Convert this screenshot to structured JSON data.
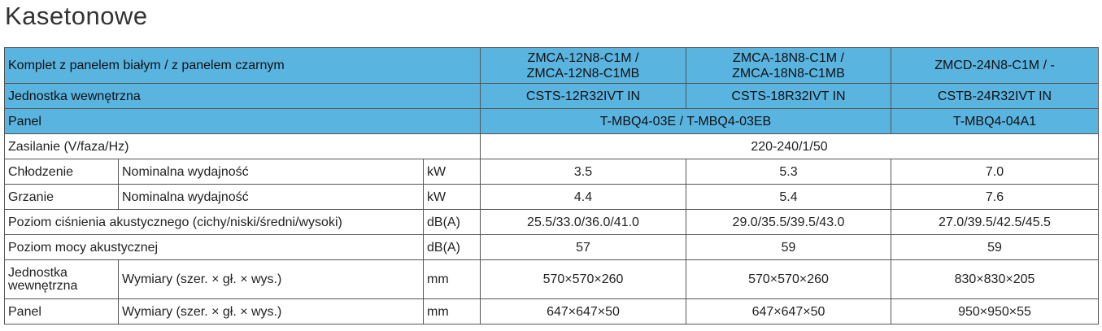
{
  "title": "Kasetonowe",
  "table": {
    "header": [
      [
        "Komplet z panelem białym / z panelem czarnym",
        "ZMCA-12N8-C1M /\nZMCA-12N8-C1MB",
        "ZMCA-18N8-C1M /\nZMCA-18N8-C1MB",
        "ZMCD-24N8-C1M / -"
      ],
      [
        "Jednostka wewnętrzna",
        "CSTS-12R32IVT IN",
        "CSTS-18R32IVT IN",
        "CSTB-24R32IVT IN"
      ],
      [
        "Panel",
        "T-MBQ4-03E / T-MBQ4-03EB",
        "T-MBQ4-04A1"
      ]
    ],
    "rows": [
      [
        "Zasilanie (V/faza/Hz)",
        "220-240/1/50"
      ],
      [
        "Chłodzenie",
        "Nominalna wydajność",
        "kW",
        "3.5",
        "5.3",
        "7.0"
      ],
      [
        "Grzanie",
        "Nominalna wydajność",
        "kW",
        "4.4",
        "5.4",
        "7.6"
      ],
      [
        "Poziom ciśnienia akustycznego (cichy/niski/średni/wysoki)",
        "dB(A)",
        "25.5/33.0/36.0/41.0",
        "29.0/35.5/39.5/43.0",
        "27.0/39.5/42.5/45.5"
      ],
      [
        "Poziom mocy akustycznej",
        "dB(A)",
        "57",
        "59",
        "59"
      ],
      [
        "Jednostka wewnętrzna",
        "Wymiary (szer. × gł. × wys.)",
        "mm",
        "570×570×260",
        "570×570×260",
        "830×830×205"
      ],
      [
        "Panel",
        "Wymiary (szer. × gł. × wys.)",
        "mm",
        "647×647×50",
        "647×647×50",
        "950×950×55"
      ]
    ]
  }
}
